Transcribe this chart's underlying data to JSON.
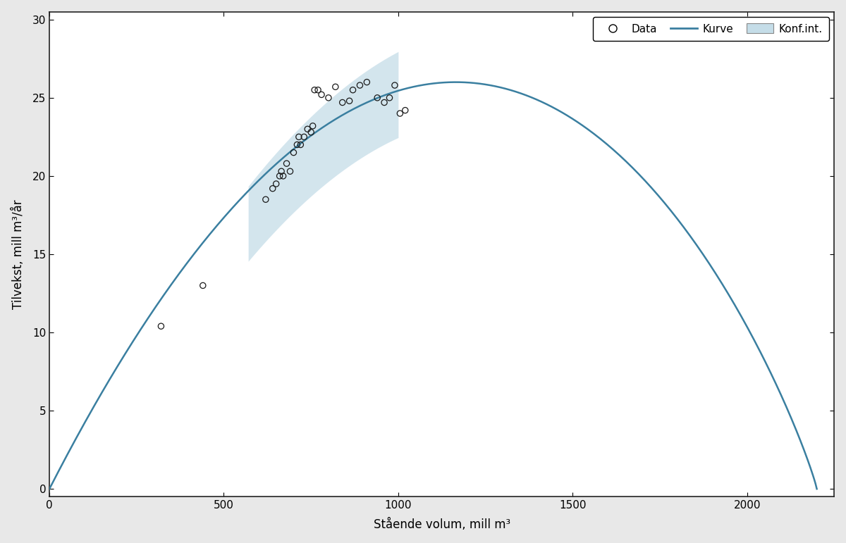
{
  "xlabel": "Stående volum, mill m³",
  "ylabel": "Tilvekst, mill m³/år",
  "xlim": [
    0,
    2250
  ],
  "ylim": [
    -0.5,
    30
  ],
  "xticks": [
    0,
    500,
    1000,
    1500,
    2000
  ],
  "yticks": [
    0,
    5,
    10,
    15,
    20,
    25,
    30
  ],
  "curve_color": "#3a7fa0",
  "fill_color": "#c5dde8",
  "scatter_color": "#1a1a1a",
  "plot_bg": "#ffffff",
  "fig_bg": "#e8e8e8",
  "legend_labels": [
    "Data",
    "Kurve",
    "Konf.int."
  ],
  "scatter_data_x": [
    320,
    440,
    620,
    640,
    650,
    660,
    665,
    670,
    680,
    690,
    700,
    710,
    715,
    720,
    730,
    740,
    750,
    755,
    760,
    770,
    780,
    800,
    820,
    840,
    860,
    870,
    890,
    910,
    940,
    960,
    975,
    990,
    1005,
    1020
  ],
  "scatter_data_y": [
    10.4,
    13.0,
    18.5,
    19.2,
    19.5,
    20.0,
    20.3,
    20.0,
    20.8,
    20.3,
    21.5,
    22.0,
    22.5,
    22.0,
    22.5,
    23.0,
    22.8,
    23.2,
    25.5,
    25.5,
    25.2,
    25.0,
    25.7,
    24.7,
    24.8,
    25.5,
    25.8,
    26.0,
    25.0,
    24.7,
    25.0,
    25.8,
    24.0,
    24.2
  ],
  "curve_K": 2200,
  "curve_alpha": 1.65e-05,
  "curve_beta": 0.55,
  "fill_x_start": 570,
  "fill_x_end": 1000,
  "peak_x": 1165,
  "peak_y": 26.0
}
